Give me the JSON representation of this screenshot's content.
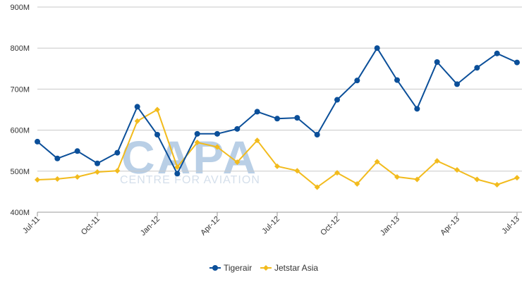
{
  "chart_data": {
    "type": "line",
    "title": "",
    "xlabel": "",
    "ylabel": "",
    "ylim": [
      400,
      900
    ],
    "yticks": [
      400,
      500,
      600,
      700,
      800,
      900
    ],
    "ytick_labels": [
      "400M",
      "500M",
      "600M",
      "700M",
      "800M",
      "900M"
    ],
    "x": [
      "Jul-11",
      "Aug-11",
      "Sep-11",
      "Oct-11",
      "Nov-11",
      "Dec-11",
      "Jan-12",
      "Feb-12",
      "Mar-12",
      "Apr-12",
      "May-12",
      "Jun-12",
      "Jul-12",
      "Aug-12",
      "Sep-12",
      "Oct-12",
      "Nov-12",
      "Dec-12",
      "Jan-13",
      "Feb-13",
      "Mar-13",
      "Apr-13",
      "May-13",
      "Jun-13",
      "Jul-13"
    ],
    "xtick_labels": [
      "Jul-11",
      "Oct-11",
      "Jan-12",
      "Apr-12",
      "Jul-12",
      "Oct-12",
      "Jan-13",
      "Apr-13",
      "Jul-13"
    ],
    "grid": "horizontal",
    "legend_position": "bottom",
    "series": [
      {
        "name": "Tigerair",
        "color": "#0b4f99",
        "marker": "circle",
        "values": [
          572,
          531,
          549,
          519,
          545,
          657,
          589,
          494,
          591,
          591,
          603,
          645,
          628,
          630,
          589,
          674,
          721,
          800,
          722,
          652,
          766,
          712,
          752,
          787,
          765
        ]
      },
      {
        "name": "Jetstar Asia",
        "color": "#f2bb1d",
        "marker": "diamond",
        "values": [
          479,
          481,
          486,
          498,
          501,
          622,
          650,
          510,
          570,
          559,
          522,
          575,
          512,
          501,
          461,
          496,
          469,
          523,
          486,
          480,
          525,
          503,
          480,
          467,
          484
        ]
      }
    ]
  },
  "watermark": {
    "logo_text": "CAPA",
    "subtitle": "CENTRE FOR AVIATION"
  }
}
